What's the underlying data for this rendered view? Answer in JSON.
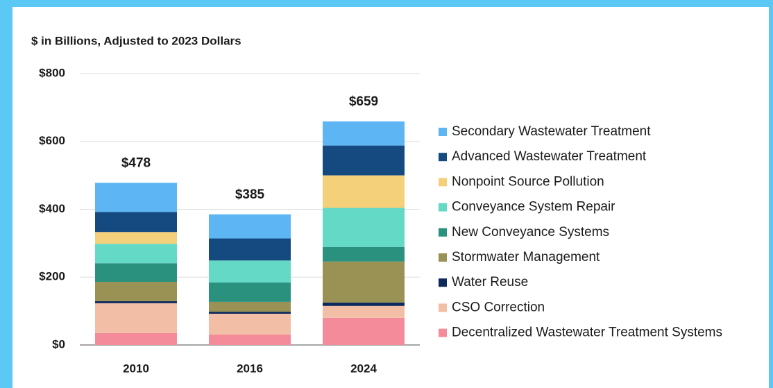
{
  "chart_data": {
    "type": "stacked_bar",
    "title": "$ in Billions, Adjusted to 2023 Dollars",
    "categories": [
      "2010",
      "2016",
      "2024"
    ],
    "series": [
      {
        "name": "Decentralized Wastewater Treatment Systems",
        "color": "#f48b9b",
        "values": [
          35,
          31,
          80
        ]
      },
      {
        "name": "CSO Correction",
        "color": "#f2bfa6",
        "values": [
          88,
          61,
          35
        ]
      },
      {
        "name": "Water Reuse",
        "color": "#0d2a5c",
        "values": [
          6,
          6,
          10
        ]
      },
      {
        "name": "Stormwater Management",
        "color": "#9a9155",
        "values": [
          57,
          29,
          121
        ]
      },
      {
        "name": "New Conveyance Systems",
        "color": "#2a917e",
        "values": [
          55,
          57,
          43
        ]
      },
      {
        "name": "Conveyance System Repair",
        "color": "#63d9c6",
        "values": [
          57,
          65,
          115
        ]
      },
      {
        "name": "Nonpoint Source Pollution",
        "color": "#f4d07a",
        "values": [
          35,
          0,
          96
        ]
      },
      {
        "name": "Advanced Wastewater Treatment",
        "color": "#154a80",
        "values": [
          59,
          65,
          88
        ]
      },
      {
        "name": "Secondary Wastewater Treatment",
        "color": "#5eb5f4",
        "values": [
          86,
          71,
          71
        ]
      }
    ],
    "totals": [
      478,
      385,
      659
    ],
    "total_labels": [
      "$478",
      "$385",
      "$659"
    ],
    "ylim": [
      0,
      800
    ],
    "yticks": [
      {
        "value": 0,
        "label": "$0"
      },
      {
        "value": 200,
        "label": "$200"
      },
      {
        "value": 400,
        "label": "$400"
      },
      {
        "value": 600,
        "label": "$600"
      },
      {
        "value": 800,
        "label": "$800"
      }
    ],
    "grid": true,
    "legend": "right"
  }
}
